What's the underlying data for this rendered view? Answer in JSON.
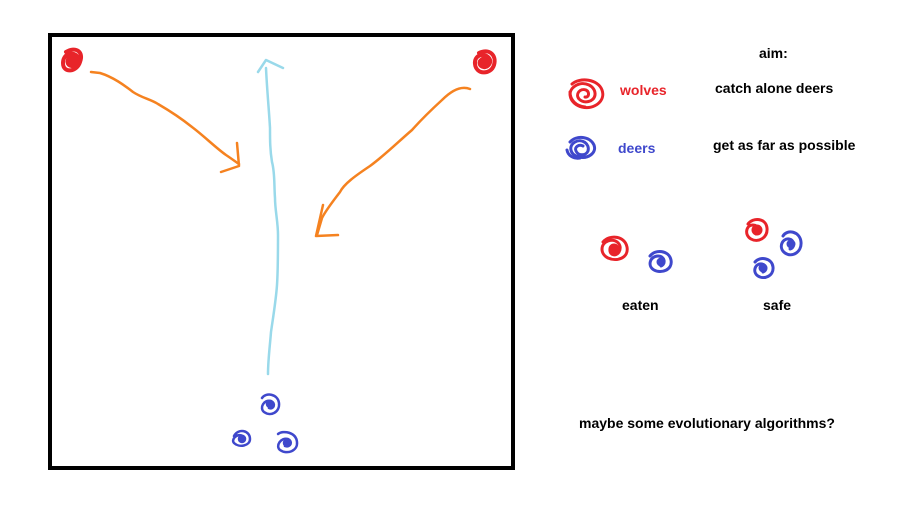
{
  "legend": {
    "aim_title": "aim:",
    "wolves": {
      "label": "wolves",
      "aim": "catch alone deers",
      "color": "#e8242a",
      "icon": "red-scribble-dot-icon"
    },
    "deers": {
      "label": "deers",
      "aim": "get as far as possible",
      "color": "#3f48cc",
      "icon": "blue-scribble-dot-icon"
    }
  },
  "examples": {
    "eaten": "eaten",
    "safe": "safe"
  },
  "footnote": "maybe some evolutionary algorithms?",
  "colors": {
    "frame": "#000000",
    "wolf_path": "#f58220",
    "deer_path": "#99d9ea",
    "wolf": "#e8242a",
    "deer": "#3f48cc"
  }
}
